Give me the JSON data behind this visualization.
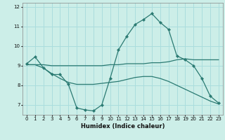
{
  "xlabel": "Humidex (Indice chaleur)",
  "bg_color": "#cceee8",
  "grid_color": "#aadddd",
  "line_color": "#2a7a72",
  "xlim": [
    -0.5,
    23.5
  ],
  "ylim": [
    6.5,
    12.2
  ],
  "xticks": [
    0,
    1,
    2,
    3,
    4,
    5,
    6,
    7,
    8,
    9,
    10,
    11,
    12,
    13,
    14,
    15,
    16,
    17,
    18,
    19,
    20,
    21,
    22,
    23
  ],
  "yticks": [
    7,
    8,
    9,
    10,
    11,
    12
  ],
  "line1_x": [
    0,
    1,
    2,
    3,
    4,
    5,
    6,
    7,
    8,
    9,
    10,
    11,
    12,
    13,
    14,
    15,
    16,
    17,
    18,
    19,
    20,
    21,
    22,
    23
  ],
  "line1_y": [
    9.1,
    9.45,
    8.9,
    8.55,
    8.55,
    8.05,
    6.85,
    6.75,
    6.7,
    7.0,
    8.35,
    9.8,
    10.5,
    11.1,
    11.35,
    11.65,
    11.2,
    10.85,
    9.5,
    9.3,
    9.0,
    8.35,
    7.45,
    7.1
  ],
  "line2_x": [
    0,
    1,
    2,
    3,
    4,
    5,
    6,
    7,
    8,
    9,
    10,
    11,
    12,
    13,
    14,
    15,
    16,
    17,
    18,
    19,
    20,
    21,
    22,
    23
  ],
  "line2_y": [
    9.05,
    9.05,
    9.05,
    9.0,
    9.0,
    9.0,
    9.0,
    9.0,
    9.0,
    9.0,
    9.05,
    9.05,
    9.1,
    9.1,
    9.1,
    9.15,
    9.15,
    9.2,
    9.3,
    9.35,
    9.3,
    9.3,
    9.3,
    9.3
  ],
  "line3_x": [
    0,
    1,
    2,
    3,
    4,
    5,
    6,
    7,
    8,
    9,
    10,
    11,
    12,
    13,
    14,
    15,
    16,
    17,
    18,
    19,
    20,
    21,
    22,
    23
  ],
  "line3_y": [
    9.05,
    9.05,
    8.88,
    8.6,
    8.35,
    8.15,
    8.05,
    8.05,
    8.05,
    8.1,
    8.15,
    8.2,
    8.3,
    8.4,
    8.45,
    8.45,
    8.35,
    8.2,
    8.0,
    7.8,
    7.6,
    7.4,
    7.2,
    7.05
  ]
}
